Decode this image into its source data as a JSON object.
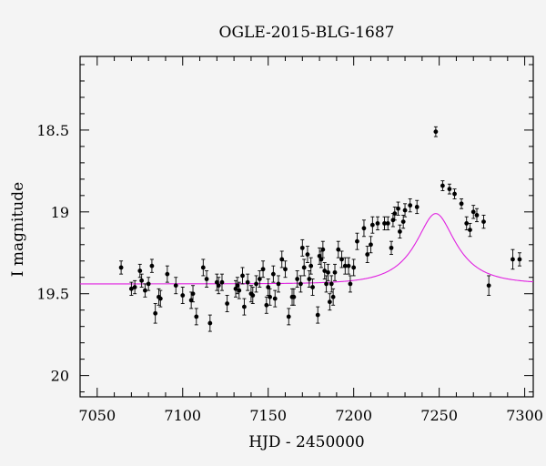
{
  "chart_data": {
    "type": "scatter",
    "title": "OGLE-2015-BLG-1687",
    "xlabel": "HJD - 2450000",
    "ylabel": "I magnitude",
    "xlim": [
      7040,
      7305
    ],
    "ylim": [
      20.13,
      18.05
    ],
    "y_inverted": true,
    "grid": false,
    "x_ticks": [
      7050,
      7100,
      7150,
      7200,
      7250,
      7300
    ],
    "y_ticks": [
      18.5,
      19,
      19.5,
      20
    ],
    "x_tick_labels": [
      "7050",
      "7100",
      "7150",
      "7200",
      "7250",
      "7300"
    ],
    "y_tick_labels": [
      "18.5",
      "19",
      "19.5",
      "20"
    ],
    "colors": {
      "data": "#000000",
      "model": "#e020e0",
      "background": "#f4f4f4"
    },
    "model": {
      "name": "",
      "t0": 7248,
      "u0": 0.45,
      "tE": 24,
      "baseline": 19.44,
      "blend_fraction": 0.35
    },
    "series": [
      {
        "name": "",
        "x": [
          7064,
          7070,
          7072,
          7075,
          7076,
          7078,
          7080,
          7082,
          7084,
          7086,
          7087,
          7091,
          7096,
          7100,
          7105,
          7106,
          7108,
          7112,
          7114,
          7116,
          7120,
          7121,
          7123,
          7126,
          7131,
          7132,
          7133,
          7135,
          7136,
          7138,
          7140,
          7141,
          7143,
          7145,
          7147,
          7149,
          7150,
          7151,
          7153,
          7154,
          7156,
          7158,
          7160,
          7162,
          7164,
          7165,
          7167,
          7169,
          7170,
          7171,
          7173,
          7174,
          7175,
          7176,
          7179,
          7180,
          7181,
          7182,
          7183,
          7184,
          7185,
          7186,
          7187,
          7188,
          7189,
          7191,
          7193,
          7195,
          7197,
          7198,
          7200,
          7202,
          7206,
          7208,
          7210,
          7211,
          7214,
          7218,
          7220,
          7222,
          7223,
          7224,
          7226,
          7227,
          7229,
          7230,
          7233,
          7237,
          7248,
          7252,
          7256,
          7259,
          7263,
          7266,
          7268,
          7270,
          7272,
          7276,
          7279,
          7293,
          7297
        ],
        "y": [
          19.34,
          19.47,
          19.46,
          19.36,
          19.42,
          19.48,
          19.44,
          19.33,
          19.62,
          19.52,
          19.53,
          19.38,
          19.45,
          19.51,
          19.54,
          19.5,
          19.64,
          19.34,
          19.41,
          19.68,
          19.43,
          19.45,
          19.43,
          19.56,
          19.47,
          19.45,
          19.48,
          19.39,
          19.58,
          19.43,
          19.5,
          19.51,
          19.44,
          19.41,
          19.35,
          19.57,
          19.46,
          19.52,
          19.38,
          19.53,
          19.44,
          19.29,
          19.35,
          19.64,
          19.52,
          19.52,
          19.41,
          19.44,
          19.22,
          19.34,
          19.26,
          19.41,
          19.33,
          19.46,
          19.63,
          19.27,
          19.29,
          19.23,
          19.36,
          19.44,
          19.37,
          19.55,
          19.44,
          19.52,
          19.37,
          19.23,
          19.29,
          19.33,
          19.33,
          19.44,
          19.34,
          19.18,
          19.1,
          19.26,
          19.2,
          19.08,
          19.07,
          19.07,
          19.07,
          19.22,
          19.05,
          19.01,
          18.98,
          19.12,
          19.06,
          18.99,
          18.96,
          18.97,
          18.51,
          18.84,
          18.86,
          18.89,
          18.95,
          19.07,
          19.11,
          19.0,
          19.02,
          19.06,
          19.45,
          19.29,
          19.29
        ],
        "err": [
          0.04,
          0.04,
          0.04,
          0.04,
          0.04,
          0.04,
          0.04,
          0.04,
          0.06,
          0.05,
          0.05,
          0.05,
          0.05,
          0.05,
          0.05,
          0.05,
          0.05,
          0.05,
          0.05,
          0.05,
          0.05,
          0.05,
          0.05,
          0.05,
          0.05,
          0.05,
          0.05,
          0.05,
          0.05,
          0.05,
          0.05,
          0.05,
          0.05,
          0.05,
          0.05,
          0.05,
          0.05,
          0.05,
          0.05,
          0.05,
          0.05,
          0.05,
          0.05,
          0.05,
          0.05,
          0.05,
          0.05,
          0.05,
          0.05,
          0.05,
          0.05,
          0.05,
          0.05,
          0.05,
          0.05,
          0.05,
          0.05,
          0.05,
          0.05,
          0.05,
          0.05,
          0.05,
          0.05,
          0.05,
          0.05,
          0.05,
          0.05,
          0.05,
          0.05,
          0.05,
          0.05,
          0.05,
          0.05,
          0.05,
          0.05,
          0.05,
          0.04,
          0.04,
          0.04,
          0.04,
          0.04,
          0.04,
          0.04,
          0.04,
          0.04,
          0.04,
          0.04,
          0.04,
          0.03,
          0.03,
          0.03,
          0.03,
          0.03,
          0.04,
          0.04,
          0.04,
          0.04,
          0.04,
          0.06,
          0.06,
          0.04
        ]
      }
    ]
  }
}
